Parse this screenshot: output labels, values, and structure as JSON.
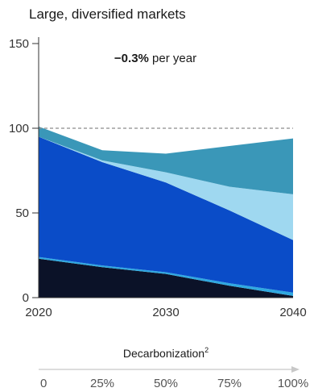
{
  "chart_data": {
    "type": "area",
    "stacked": true,
    "title": "Large, diversified markets",
    "x": [
      2020,
      2025,
      2030,
      2035,
      2040
    ],
    "x_ticks": [
      "2020",
      "2030",
      "2040"
    ],
    "ylim": [
      0,
      150
    ],
    "y_ticks": [
      "0",
      "50",
      "100",
      "150"
    ],
    "reference_line": {
      "y": 100,
      "style": "dashed"
    },
    "annotation": {
      "value": "−0.3%",
      "text": " per year"
    },
    "series": [
      {
        "values": [
          23,
          18,
          14,
          7,
          1
        ],
        "color": "#0b1228"
      },
      {
        "values": [
          1,
          1,
          1,
          1.5,
          2
        ],
        "color": "#2fa8e0"
      },
      {
        "values": [
          71,
          61,
          53,
          43,
          31
        ],
        "color": "#0a4cc8"
      },
      {
        "values": [
          0,
          1,
          6,
          14,
          27
        ],
        "color": "#9fd8f0"
      },
      {
        "values": [
          6,
          6,
          11,
          24,
          33
        ],
        "color": "#3a97b8"
      }
    ],
    "secondary_axis": {
      "label": "Decarbonization",
      "footnote": "2",
      "ticks": [
        "0",
        "25%",
        "50%",
        "75%",
        "100%"
      ]
    },
    "colors": {
      "reference_line": "#8c8c8c",
      "axis": "#333333",
      "arrow": "#c8c8c8"
    }
  }
}
